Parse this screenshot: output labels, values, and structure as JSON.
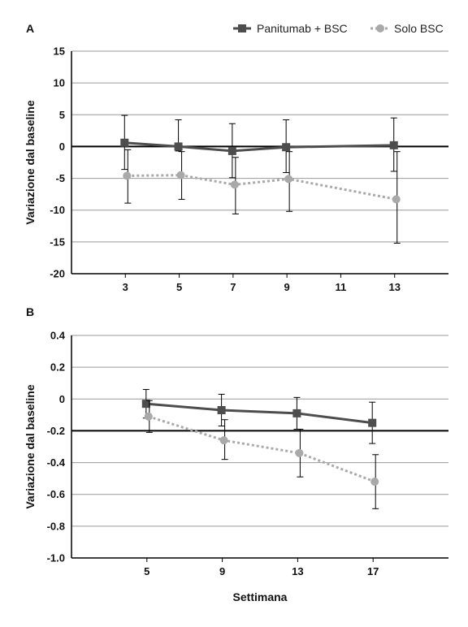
{
  "legend": {
    "series_a_label": "Panitumab + BSC",
    "series_b_label": "Solo BSC"
  },
  "colors": {
    "panitumab": "#4d4d4d",
    "solo": "#a9a9a9",
    "grid": "#999999",
    "axis": "#000000"
  },
  "xlabel": "Settimana",
  "chart_data": [
    {
      "panel": "A",
      "type": "line",
      "ylabel": "Variazione dal baseline",
      "ylim": [
        -20,
        15
      ],
      "yticks": [
        15,
        10,
        5,
        0,
        -5,
        -10,
        -15,
        -20
      ],
      "ytick_labels": [
        "15",
        "10",
        "5",
        "0",
        "-5",
        "-10",
        "-15",
        "-20"
      ],
      "xlim": [
        1,
        15
      ],
      "xticks": [
        3,
        5,
        7,
        9,
        11,
        13
      ],
      "xtick_labels": [
        "3",
        "5",
        "7",
        "9",
        "11",
        "13"
      ],
      "reference_line": 0,
      "grid": true,
      "legend_position": "top-right",
      "series": [
        {
          "name": "Panitumab + BSC",
          "marker": "square",
          "line": "solid",
          "x": [
            3,
            5,
            7,
            9,
            13
          ],
          "y": [
            0.6,
            0.0,
            -0.7,
            -0.1,
            0.2
          ],
          "err_low": [
            -3.6,
            -0.7,
            -4.9,
            -4.1,
            -3.9
          ],
          "err_high": [
            4.9,
            4.2,
            3.6,
            4.2,
            4.5
          ]
        },
        {
          "name": "Solo BSC",
          "marker": "circle",
          "line": "dotted",
          "x": [
            3,
            5,
            7,
            9,
            13
          ],
          "y": [
            -4.6,
            -4.5,
            -6.0,
            -5.1,
            -8.3
          ],
          "err_low": [
            -8.9,
            -8.3,
            -10.6,
            -10.2,
            -15.2
          ],
          "err_high": [
            -0.5,
            -0.8,
            -1.7,
            -0.8,
            -0.8
          ]
        }
      ]
    },
    {
      "panel": "B",
      "type": "line",
      "ylabel": "Variazione dal baseline",
      "ylim": [
        -1.0,
        0.4
      ],
      "yticks": [
        0.4,
        0.2,
        0,
        -0.2,
        -0.4,
        -0.6,
        -0.8,
        -1.0
      ],
      "ytick_labels": [
        "0.4",
        "0.2",
        "0",
        "-0.2",
        "-0.4",
        "-0.6",
        "-0.8",
        "-1.0"
      ],
      "xlim": [
        1,
        21
      ],
      "xticks": [
        5,
        9,
        13,
        17
      ],
      "xtick_labels": [
        "5",
        "9",
        "13",
        "17"
      ],
      "reference_line": -0.2,
      "grid": true,
      "series": [
        {
          "name": "Panitumab + BSC",
          "marker": "square",
          "line": "solid",
          "x": [
            5,
            9,
            13,
            17
          ],
          "y": [
            -0.03,
            -0.07,
            -0.09,
            -0.15
          ],
          "err_low": [
            -0.12,
            -0.17,
            -0.19,
            -0.28
          ],
          "err_high": [
            0.06,
            0.03,
            0.01,
            -0.02
          ]
        },
        {
          "name": "Solo BSC",
          "marker": "circle",
          "line": "dotted",
          "x": [
            5,
            9,
            13,
            17
          ],
          "y": [
            -0.11,
            -0.26,
            -0.34,
            -0.52
          ],
          "err_low": [
            -0.21,
            -0.38,
            -0.49,
            -0.69
          ],
          "err_high": [
            -0.01,
            -0.13,
            -0.19,
            -0.35
          ]
        }
      ]
    }
  ]
}
